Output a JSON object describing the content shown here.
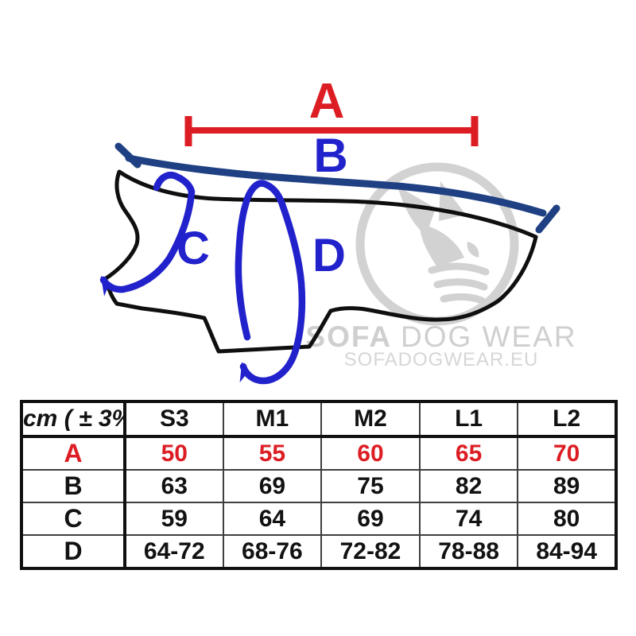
{
  "page": {
    "background": "#ffffff"
  },
  "diagram": {
    "labels": {
      "a": "A",
      "b": "B",
      "c": "C",
      "d": "D"
    },
    "colors": {
      "measure_red": "#dc1e24",
      "measure_blue": "#2222cc",
      "back_line_navy": "#1f4083",
      "coat_outline": "#0f0f0f",
      "watermark_gray": "#d2d2d2"
    }
  },
  "watermark": {
    "brand_bold": "SOFA ",
    "brand_rest": "DOG WEAR",
    "url": "SOFADOGWEAR.EU"
  },
  "chart_data": {
    "type": "table",
    "unit_label": "cm ( ± 3%)",
    "columns": [
      "S3",
      "M1",
      "M2",
      "L1",
      "L2"
    ],
    "rows": [
      {
        "label": "A",
        "color": "#dc1e24",
        "values": [
          "50",
          "55",
          "60",
          "65",
          "70"
        ]
      },
      {
        "label": "B",
        "color": "#121212",
        "values": [
          "63",
          "69",
          "75",
          "82",
          "89"
        ]
      },
      {
        "label": "C",
        "color": "#121212",
        "values": [
          "59",
          "64",
          "69",
          "74",
          "80"
        ]
      },
      {
        "label": "D",
        "color": "#121212",
        "values": [
          "64-72",
          "68-76",
          "72-82",
          "78-88",
          "84-94"
        ]
      }
    ]
  }
}
